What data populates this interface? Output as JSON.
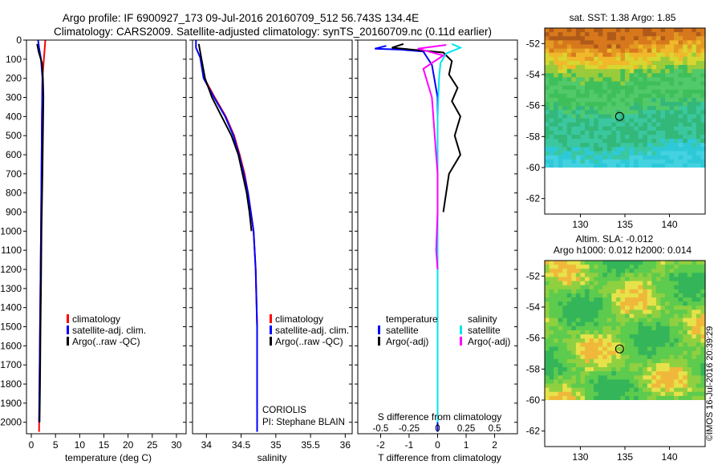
{
  "title_line1": "Argo profile: IF 6900927_173 09-Jul-2016 20160709_512 56.743S 134.4E",
  "title_line2": "Climatology: CARS2009. Satellite-adjusted climatology: synTS_20160709.nc (0.11d earlier)",
  "watermark": "©IMOS 16-Jul-2016 20:39:29",
  "colors": {
    "climatology": "#ff0000",
    "satellite": "#0000ff",
    "argo": "#000000",
    "sal_satellite": "#00e5ee",
    "sal_argo": "#ff00ff"
  },
  "chart_data": [
    {
      "type": "line",
      "xlabel": "temperature (deg C)",
      "xlim": [
        -1,
        32
      ],
      "xticks": [
        0,
        5,
        10,
        15,
        20,
        25,
        30
      ],
      "ylim": [
        2060,
        0
      ],
      "yticks": [
        0,
        100,
        200,
        300,
        400,
        500,
        600,
        700,
        800,
        900,
        1000,
        1100,
        1200,
        1300,
        1400,
        1500,
        1600,
        1700,
        1800,
        1900,
        2000
      ],
      "legend": [
        "climatology",
        "satellite-adj. clim.",
        "Argo(..raw -QC)"
      ],
      "series": [
        {
          "name": "climatology",
          "color": "#ff0000",
          "points": [
            [
              2.9,
              0
            ],
            [
              2.6,
              100
            ],
            [
              2.3,
              200
            ],
            [
              2.2,
              400
            ],
            [
              2.1,
              700
            ],
            [
              2.0,
              1000
            ],
            [
              1.8,
              1500
            ],
            [
              1.6,
              2050
            ]
          ]
        },
        {
          "name": "satellite-adj. clim.",
          "color": "#0000ff",
          "points": [
            [
              1.4,
              0
            ],
            [
              1.6,
              40
            ],
            [
              2.0,
              100
            ],
            [
              2.3,
              200
            ],
            [
              2.2,
              400
            ],
            [
              2.1,
              700
            ],
            [
              2.0,
              1000
            ],
            [
              1.8,
              1500
            ],
            [
              1.6,
              2000
            ]
          ]
        },
        {
          "name": "Argo(..raw -QC)",
          "color": "#000000",
          "points": [
            [
              1.2,
              20
            ],
            [
              1.5,
              60
            ],
            [
              2.2,
              120
            ],
            [
              2.4,
              200
            ],
            [
              2.5,
              300
            ],
            [
              2.4,
              500
            ],
            [
              2.3,
              700
            ],
            [
              2.1,
              1000
            ],
            [
              2.0,
              1300
            ],
            [
              1.9,
              1500
            ],
            [
              1.8,
              1800
            ],
            [
              1.7,
              2000
            ]
          ]
        }
      ]
    },
    {
      "type": "line",
      "xlabel": "salinity",
      "xlim": [
        33.8,
        36.1
      ],
      "xticks": [
        "34",
        "34.5",
        "35",
        "35.5",
        "36"
      ],
      "ylim": [
        2060,
        0
      ],
      "legend": [
        "climatology",
        "satellite-adj. clim.",
        "Argo(..raw -QC)"
      ],
      "annotation": [
        "CORIOLIS",
        "PI: Stephane BLAIN"
      ],
      "series": [
        {
          "name": "climatology",
          "color": "#ff0000",
          "points": [
            [
              33.92,
              100
            ],
            [
              33.97,
              200
            ],
            [
              34.12,
              300
            ],
            [
              34.28,
              400
            ],
            [
              34.4,
              500
            ],
            [
              34.48,
              600
            ],
            [
              34.55,
              700
            ],
            [
              34.6,
              800
            ],
            [
              34.64,
              900
            ],
            [
              34.68,
              1000
            ],
            [
              34.71,
              1200
            ],
            [
              34.73,
              1500
            ],
            [
              34.73,
              2000
            ]
          ]
        },
        {
          "name": "satellite-adj. clim.",
          "color": "#0000ff",
          "points": [
            [
              33.85,
              0
            ],
            [
              33.85,
              40
            ],
            [
              33.91,
              90
            ],
            [
              33.96,
              200
            ],
            [
              34.11,
              300
            ],
            [
              34.27,
              400
            ],
            [
              34.39,
              500
            ],
            [
              34.47,
              600
            ],
            [
              34.54,
              700
            ],
            [
              34.6,
              800
            ],
            [
              34.64,
              900
            ],
            [
              34.68,
              1000
            ],
            [
              34.71,
              1200
            ],
            [
              34.73,
              1500
            ],
            [
              34.73,
              2050
            ]
          ]
        },
        {
          "name": "Argo(..raw -QC)",
          "color": "#000000",
          "points": [
            [
              33.89,
              20
            ],
            [
              33.93,
              100
            ],
            [
              33.98,
              200
            ],
            [
              34.08,
              300
            ],
            [
              34.22,
              400
            ],
            [
              34.36,
              500
            ],
            [
              34.46,
              600
            ],
            [
              34.52,
              700
            ],
            [
              34.58,
              800
            ],
            [
              34.62,
              900
            ],
            [
              34.65,
              1000
            ]
          ]
        }
      ]
    },
    {
      "type": "line",
      "xlabel": "T difference from climatology",
      "xlabel2": "S difference from climatology",
      "xlim": [
        -2.8,
        2.8
      ],
      "xticks": [
        "-2",
        "-1",
        "0",
        "1",
        "2"
      ],
      "xticks2": [
        "-0.5",
        "-0.25",
        "0",
        "0.25",
        "0.5"
      ],
      "ylim": [
        2060,
        0
      ],
      "legend_headers": [
        "temperature",
        "salinity"
      ],
      "legend": [
        "satellite",
        "Argo(-adj)",
        "satellite",
        "Argo(-adj)"
      ],
      "series": [
        {
          "name": "satellite",
          "color": "#0000ff",
          "points": [
            [
              -1.8,
              30
            ],
            [
              -2.2,
              45
            ],
            [
              -1.3,
              50
            ],
            [
              -0.5,
              60
            ],
            [
              -0.2,
              130
            ],
            [
              0.0,
              300
            ],
            [
              0.0,
              800
            ],
            [
              0.0,
              1500
            ],
            [
              0.0,
              2050
            ]
          ]
        },
        {
          "name": "Argo(-adj)",
          "color": "#000000",
          "points": [
            [
              -1.2,
              20
            ],
            [
              -1.6,
              40
            ],
            [
              0.2,
              65
            ],
            [
              0.5,
              110
            ],
            [
              0.4,
              180
            ],
            [
              0.7,
              250
            ],
            [
              0.5,
              320
            ],
            [
              0.8,
              400
            ],
            [
              0.6,
              500
            ],
            [
              0.8,
              600
            ],
            [
              0.4,
              700
            ],
            [
              0.2,
              900
            ]
          ]
        },
        {
          "name": "satellite",
          "color": "#00e5ee",
          "points": [
            [
              0.5,
              20
            ],
            [
              0.8,
              40
            ],
            [
              0.3,
              70
            ],
            [
              0.1,
              120
            ],
            [
              0.05,
              200
            ],
            [
              0.0,
              400
            ],
            [
              0.0,
              800
            ],
            [
              0.0,
              2000
            ]
          ]
        },
        {
          "name": "Argo(-adj)",
          "color": "#ff00ff",
          "points": [
            [
              0.3,
              25
            ],
            [
              -0.7,
              45
            ],
            [
              0.2,
              80
            ],
            [
              -0.5,
              150
            ],
            [
              -0.2,
              300
            ],
            [
              -0.1,
              500
            ],
            [
              0.0,
              700
            ],
            [
              0.0,
              900
            ],
            [
              -0.05,
              1100
            ],
            [
              0.0,
              1200
            ]
          ]
        }
      ]
    },
    {
      "type": "heatmap",
      "title": "sat. SST: 1.38 Argo: 1.85",
      "xlim": [
        126,
        144
      ],
      "ylim": [
        -63,
        -51
      ],
      "xticks": [
        "130",
        "135",
        "140"
      ],
      "yticks": [
        "-52",
        "-54",
        "-56",
        "-58",
        "-60",
        "-62"
      ],
      "marker": {
        "lon": 134.4,
        "lat": -56.7
      }
    },
    {
      "type": "heatmap",
      "title": "Altim. SLA: -0.012",
      "subtitle": "Argo h1000: 0.012 h2000: 0.014",
      "xlim": [
        126,
        144
      ],
      "ylim": [
        -63,
        -51
      ],
      "xticks": [
        "130",
        "135",
        "140"
      ],
      "yticks": [
        "-52",
        "-54",
        "-56",
        "-58",
        "-60",
        "-62"
      ],
      "marker": {
        "lon": 134.4,
        "lat": -56.7
      }
    }
  ]
}
